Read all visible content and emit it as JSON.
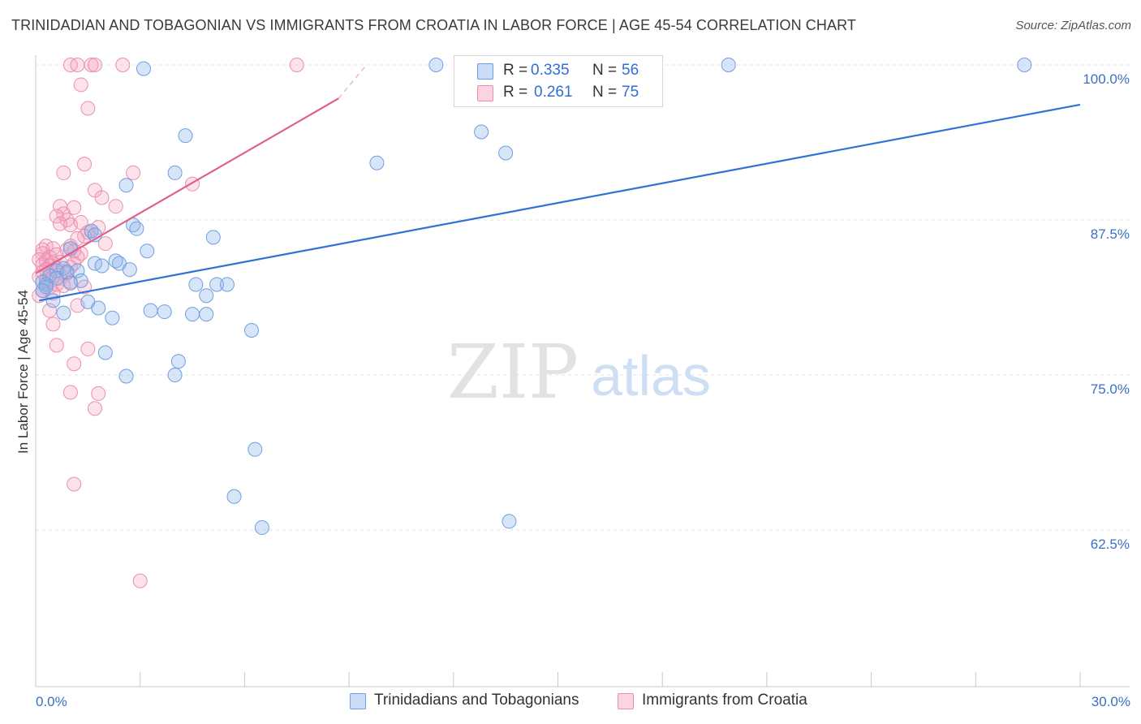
{
  "header": {
    "title": "TRINIDADIAN AND TOBAGONIAN VS IMMIGRANTS FROM CROATIA IN LABOR FORCE | AGE 45-54 CORRELATION CHART",
    "source": "Source: ZipAtlas.com"
  },
  "watermark": {
    "zip": "ZIP",
    "atlas": "atlas"
  },
  "legend": {
    "r_label": "R =",
    "n_label": "N =",
    "series": [
      {
        "r": "0.335",
        "n": "56"
      },
      {
        "r": "0.261",
        "n": "75"
      }
    ]
  },
  "bottom_legend": [
    "Trinidadians and Tobagonians",
    "Immigrants from Croatia"
  ],
  "chart_data": {
    "type": "scatter",
    "title": "TRINIDADIAN AND TOBAGONIAN VS IMMIGRANTS FROM CROATIA IN LABOR FORCE | AGE 45-54 CORRELATION CHART",
    "xlabel": "",
    "ylabel": "In Labor Force | Age 45-54",
    "xlim": [
      0,
      30
    ],
    "ylim": [
      50.5,
      101.2
    ],
    "x_tick_labels": {
      "0": "0.0%",
      "30": "30.0%"
    },
    "x_minor_ticks": [
      3,
      6,
      9,
      12,
      15,
      18,
      21,
      24,
      27,
      30
    ],
    "y_ticks": [
      62.5,
      75.0,
      87.5,
      100.0
    ],
    "y_tick_labels": [
      "62.5%",
      "75.0%",
      "87.5%",
      "100.0%"
    ],
    "grid": true,
    "colors": {
      "blue_fill": "rgba(139,180,236,0.35)",
      "blue_stroke": "#6f9fe0",
      "blue_line": "#2f72d3",
      "pink_fill": "rgba(244,160,188,0.30)",
      "pink_stroke": "#ec8fae",
      "pink_line": "#e0608c"
    },
    "series": [
      {
        "name": "Trinidadians and Tobagonians",
        "color": "blue",
        "trend": {
          "x": [
            0.1,
            30.0
          ],
          "y": [
            81.0,
            96.8
          ]
        },
        "points": [
          [
            3.1,
            99.7
          ],
          [
            11.5,
            100.0
          ],
          [
            19.9,
            100.0
          ],
          [
            28.4,
            100.0
          ],
          [
            4.3,
            94.3
          ],
          [
            12.8,
            94.6
          ],
          [
            13.5,
            92.9
          ],
          [
            9.8,
            92.1
          ],
          [
            4.0,
            91.3
          ],
          [
            2.6,
            90.3
          ],
          [
            2.8,
            87.1
          ],
          [
            2.9,
            86.8
          ],
          [
            1.6,
            86.6
          ],
          [
            1.7,
            86.3
          ],
          [
            5.1,
            86.1
          ],
          [
            1.0,
            85.2
          ],
          [
            3.2,
            85.0
          ],
          [
            1.7,
            84.0
          ],
          [
            1.9,
            83.8
          ],
          [
            2.4,
            84.0
          ],
          [
            2.3,
            84.2
          ],
          [
            0.8,
            83.6
          ],
          [
            1.2,
            83.4
          ],
          [
            2.7,
            83.5
          ],
          [
            0.6,
            83.4
          ],
          [
            0.9,
            83.3
          ],
          [
            0.4,
            83.0
          ],
          [
            0.6,
            82.8
          ],
          [
            1.3,
            82.6
          ],
          [
            0.2,
            82.5
          ],
          [
            0.3,
            82.3
          ],
          [
            4.6,
            82.3
          ],
          [
            5.2,
            82.3
          ],
          [
            5.5,
            82.3
          ],
          [
            0.3,
            82.1
          ],
          [
            4.9,
            81.4
          ],
          [
            0.5,
            81.0
          ],
          [
            1.5,
            80.9
          ],
          [
            1.8,
            80.4
          ],
          [
            3.3,
            80.2
          ],
          [
            3.7,
            80.1
          ],
          [
            0.8,
            80.0
          ],
          [
            4.5,
            79.9
          ],
          [
            4.9,
            79.9
          ],
          [
            2.2,
            79.6
          ],
          [
            6.2,
            78.6
          ],
          [
            2.0,
            76.8
          ],
          [
            4.1,
            76.1
          ],
          [
            2.6,
            74.9
          ],
          [
            4.0,
            75.0
          ],
          [
            6.3,
            69.0
          ],
          [
            5.7,
            65.2
          ],
          [
            6.5,
            62.7
          ],
          [
            13.6,
            63.2
          ],
          [
            0.2,
            81.8
          ],
          [
            1.0,
            82.4
          ]
        ]
      },
      {
        "name": "Immigrants from Croatia",
        "color": "pink",
        "trend": {
          "x": [
            0.0,
            8.7
          ],
          "y": [
            83.2,
            97.3
          ]
        },
        "trend_ext": {
          "x": [
            8.7,
            9.5
          ],
          "y": [
            97.3,
            100.0
          ]
        },
        "points": [
          [
            1.0,
            100.0
          ],
          [
            1.2,
            100.0
          ],
          [
            1.6,
            100.0
          ],
          [
            1.7,
            100.0
          ],
          [
            2.5,
            100.0
          ],
          [
            7.5,
            100.0
          ],
          [
            1.3,
            98.4
          ],
          [
            1.5,
            96.5
          ],
          [
            1.4,
            92.0
          ],
          [
            0.8,
            91.3
          ],
          [
            2.8,
            91.3
          ],
          [
            4.5,
            90.4
          ],
          [
            1.7,
            89.9
          ],
          [
            1.9,
            89.3
          ],
          [
            2.3,
            88.6
          ],
          [
            0.7,
            88.6
          ],
          [
            1.1,
            88.5
          ],
          [
            0.8,
            88.0
          ],
          [
            0.6,
            87.8
          ],
          [
            0.9,
            87.5
          ],
          [
            1.3,
            87.3
          ],
          [
            0.7,
            87.2
          ],
          [
            1.0,
            87.1
          ],
          [
            1.8,
            86.9
          ],
          [
            1.5,
            86.5
          ],
          [
            1.6,
            86.6
          ],
          [
            1.4,
            86.2
          ],
          [
            1.2,
            86.0
          ],
          [
            2.0,
            85.6
          ],
          [
            0.3,
            85.4
          ],
          [
            1.0,
            85.4
          ],
          [
            0.5,
            85.2
          ],
          [
            0.2,
            85.1
          ],
          [
            0.9,
            85.1
          ],
          [
            1.1,
            85.0
          ],
          [
            1.3,
            84.8
          ],
          [
            0.2,
            84.8
          ],
          [
            0.6,
            84.7
          ],
          [
            0.4,
            84.5
          ],
          [
            1.2,
            84.5
          ],
          [
            0.1,
            84.3
          ],
          [
            0.3,
            84.2
          ],
          [
            0.7,
            84.1
          ],
          [
            0.5,
            84.0
          ],
          [
            0.2,
            83.9
          ],
          [
            0.4,
            83.8
          ],
          [
            1.0,
            83.7
          ],
          [
            0.6,
            83.6
          ],
          [
            0.3,
            83.5
          ],
          [
            0.2,
            83.3
          ],
          [
            0.9,
            83.2
          ],
          [
            0.5,
            83.0
          ],
          [
            0.1,
            82.9
          ],
          [
            0.7,
            82.8
          ],
          [
            0.3,
            82.6
          ],
          [
            1.0,
            82.5
          ],
          [
            0.6,
            82.3
          ],
          [
            0.8,
            82.2
          ],
          [
            0.4,
            82.1
          ],
          [
            1.4,
            82.1
          ],
          [
            0.2,
            81.8
          ],
          [
            0.5,
            81.6
          ],
          [
            0.1,
            81.4
          ],
          [
            1.2,
            80.6
          ],
          [
            0.4,
            80.2
          ],
          [
            0.5,
            79.1
          ],
          [
            0.6,
            77.4
          ],
          [
            1.5,
            77.1
          ],
          [
            1.1,
            75.9
          ],
          [
            1.0,
            73.6
          ],
          [
            1.8,
            73.5
          ],
          [
            1.7,
            72.3
          ],
          [
            1.1,
            66.2
          ],
          [
            3.0,
            58.4
          ],
          [
            1.1,
            84.0
          ]
        ]
      }
    ]
  }
}
